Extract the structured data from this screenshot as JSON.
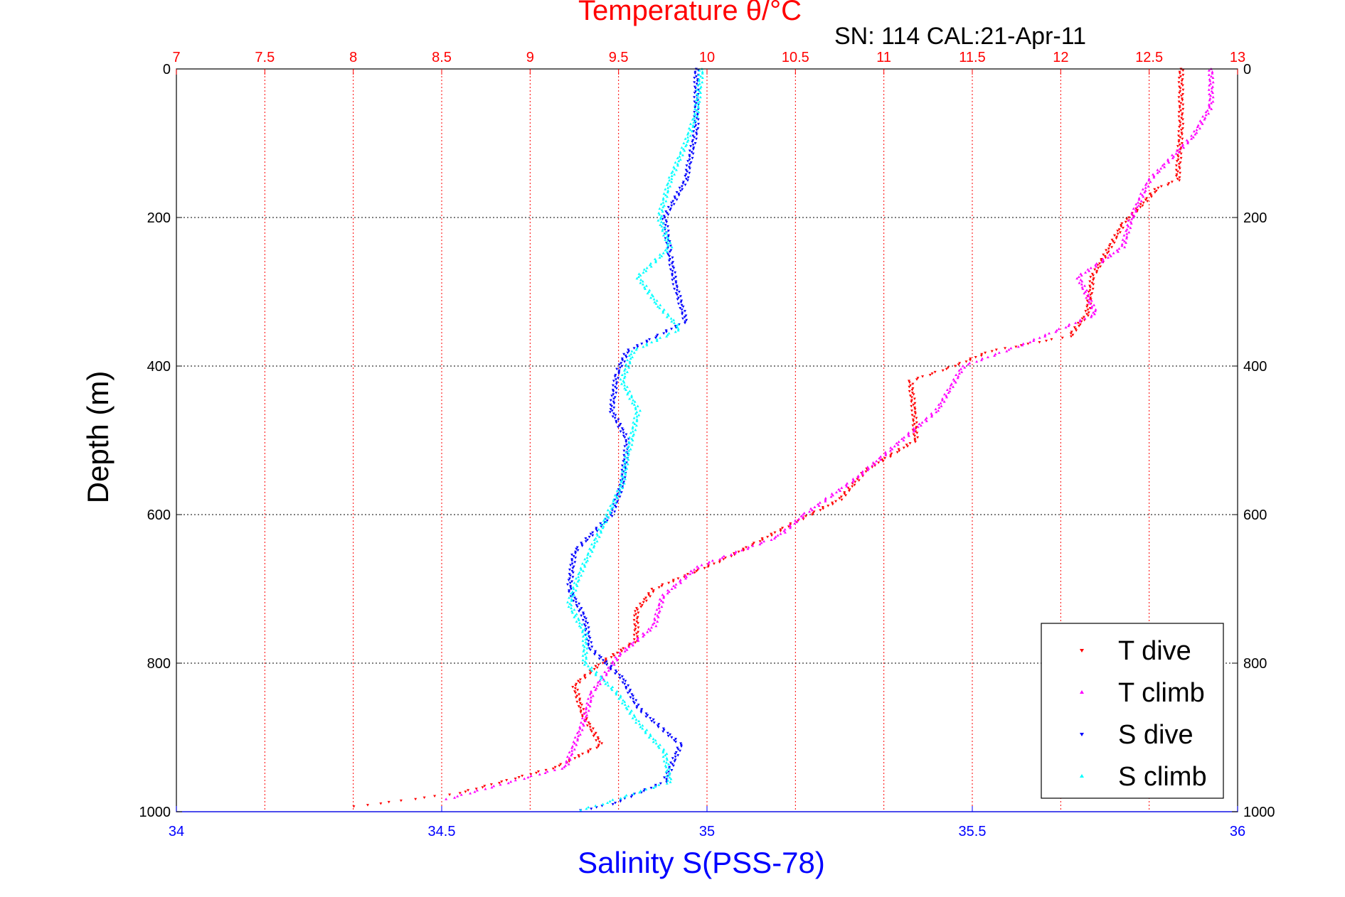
{
  "chart_data": {
    "type": "scatter",
    "title": "Temperature θ/°C",
    "subtitle": "SN: 114  CAL:21-Apr-11",
    "xlabel_bottom": "Salinity S(PSS-78)",
    "xlabel_top": "Temperature θ/°C",
    "ylabel": "Depth (m)",
    "temperature_axis": {
      "range": [
        7,
        13
      ],
      "ticks": [
        "7",
        "7.5",
        "8",
        "8.5",
        "9",
        "9.5",
        "10",
        "10.5",
        "11",
        "11.5",
        "12",
        "12.5",
        "13"
      ],
      "color": "#ff0000"
    },
    "salinity_axis": {
      "range": [
        34,
        36
      ],
      "ticks": [
        "34",
        "34.5",
        "35",
        "35.5",
        "36"
      ],
      "color": "#0000ff"
    },
    "depth_axis": {
      "range": [
        0,
        1000
      ],
      "reversed": true,
      "ticks": [
        "0",
        "200",
        "400",
        "600",
        "800",
        "1000"
      ]
    },
    "grid": true,
    "legend": {
      "placement": "bottom-right",
      "entries": [
        {
          "label": "T dive",
          "color": "#ff0000"
        },
        {
          "label": "T climb",
          "color": "#ff00ff"
        },
        {
          "label": "S dive",
          "color": "#0000ff"
        },
        {
          "label": "S climb",
          "color": "#00ffff"
        }
      ]
    },
    "series": [
      {
        "name": "T dive",
        "axis": "temperature",
        "color": "#ff0000",
        "points": [
          [
            12.68,
            0
          ],
          [
            12.68,
            80
          ],
          [
            12.66,
            150
          ],
          [
            12.55,
            160
          ],
          [
            12.35,
            210
          ],
          [
            12.18,
            280
          ],
          [
            12.15,
            330
          ],
          [
            12.05,
            360
          ],
          [
            11.6,
            380
          ],
          [
            11.4,
            400
          ],
          [
            11.15,
            420
          ],
          [
            11.17,
            460
          ],
          [
            11.18,
            500
          ],
          [
            10.9,
            540
          ],
          [
            10.75,
            580
          ],
          [
            10.5,
            610
          ],
          [
            10.1,
            660
          ],
          [
            9.7,
            700
          ],
          [
            9.6,
            730
          ],
          [
            9.6,
            770
          ],
          [
            9.4,
            800
          ],
          [
            9.25,
            830
          ],
          [
            9.3,
            870
          ],
          [
            9.4,
            910
          ],
          [
            9.15,
            940
          ],
          [
            8.6,
            975
          ],
          [
            7.95,
            995
          ]
        ]
      },
      {
        "name": "T climb",
        "axis": "temperature",
        "color": "#ff00ff",
        "points": [
          [
            12.85,
            0
          ],
          [
            12.85,
            50
          ],
          [
            12.75,
            90
          ],
          [
            12.5,
            150
          ],
          [
            12.4,
            200
          ],
          [
            12.35,
            240
          ],
          [
            12.1,
            280
          ],
          [
            12.2,
            330
          ],
          [
            11.8,
            370
          ],
          [
            11.45,
            400
          ],
          [
            11.3,
            460
          ],
          [
            11.1,
            500
          ],
          [
            10.85,
            550
          ],
          [
            10.55,
            600
          ],
          [
            10.4,
            630
          ],
          [
            9.95,
            670
          ],
          [
            9.75,
            710
          ],
          [
            9.7,
            750
          ],
          [
            9.5,
            790
          ],
          [
            9.35,
            840
          ],
          [
            9.3,
            880
          ],
          [
            9.2,
            940
          ],
          [
            8.5,
            985
          ]
        ]
      },
      {
        "name": "S dive",
        "axis": "salinity",
        "color": "#0000ff",
        "points": [
          [
            34.98,
            0
          ],
          [
            34.98,
            80
          ],
          [
            34.96,
            150
          ],
          [
            34.92,
            200
          ],
          [
            34.93,
            250
          ],
          [
            34.94,
            290
          ],
          [
            34.96,
            340
          ],
          [
            34.85,
            380
          ],
          [
            34.83,
            410
          ],
          [
            34.82,
            460
          ],
          [
            34.85,
            500
          ],
          [
            34.84,
            560
          ],
          [
            34.82,
            600
          ],
          [
            34.75,
            650
          ],
          [
            34.74,
            700
          ],
          [
            34.77,
            740
          ],
          [
            34.78,
            780
          ],
          [
            34.84,
            820
          ],
          [
            34.87,
            860
          ],
          [
            34.95,
            910
          ],
          [
            34.92,
            960
          ],
          [
            34.82,
            990
          ],
          [
            34.75,
            1000
          ]
        ]
      },
      {
        "name": "S climb",
        "axis": "salinity",
        "color": "#00ffff",
        "points": [
          [
            34.99,
            0
          ],
          [
            34.98,
            60
          ],
          [
            34.96,
            100
          ],
          [
            34.93,
            150
          ],
          [
            34.91,
            200
          ],
          [
            34.93,
            240
          ],
          [
            34.87,
            280
          ],
          [
            34.91,
            320
          ],
          [
            34.95,
            350
          ],
          [
            34.86,
            380
          ],
          [
            34.84,
            420
          ],
          [
            34.87,
            460
          ],
          [
            34.85,
            520
          ],
          [
            34.84,
            560
          ],
          [
            34.8,
            620
          ],
          [
            34.76,
            680
          ],
          [
            34.74,
            720
          ],
          [
            34.77,
            760
          ],
          [
            34.77,
            800
          ],
          [
            34.83,
            840
          ],
          [
            34.87,
            880
          ],
          [
            34.92,
            920
          ],
          [
            34.93,
            960
          ],
          [
            34.8,
            990
          ],
          [
            34.75,
            1000
          ]
        ]
      }
    ]
  }
}
